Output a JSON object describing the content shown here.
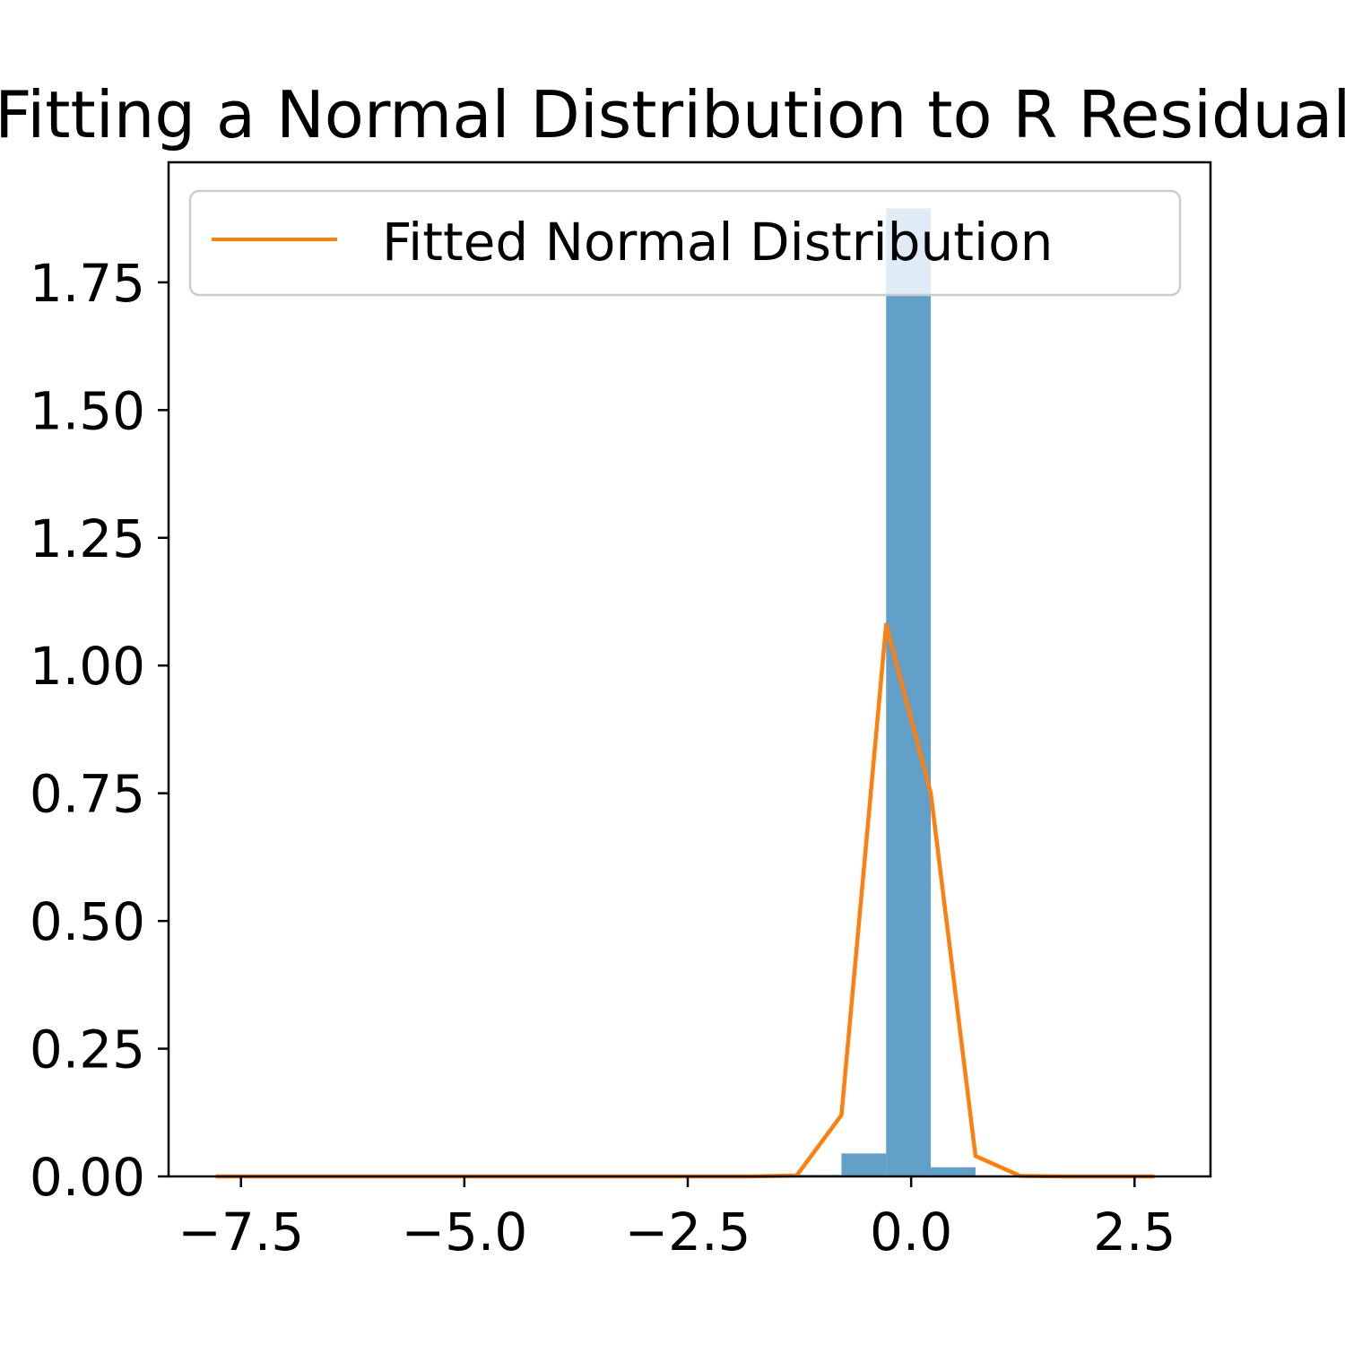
{
  "chart_data": {
    "type": "bar",
    "title": "Fitting a Normal Distribution to R Residuals",
    "xlabel": "",
    "ylabel": "",
    "xlim": [
      -8.31,
      3.35
    ],
    "ylim": [
      0,
      1.985
    ],
    "xticks": [
      -7.5,
      -5.0,
      -2.5,
      0.0,
      2.5
    ],
    "xtick_labels": [
      "−7.5",
      "−5.0",
      "−2.5",
      "0.0",
      "2.5"
    ],
    "yticks": [
      0.0,
      0.25,
      0.5,
      0.75,
      1.0,
      1.25,
      1.5,
      1.75
    ],
    "ytick_labels": [
      "0.00",
      "0.25",
      "0.50",
      "0.75",
      "1.00",
      "1.25",
      "1.50",
      "1.75"
    ],
    "grid": false,
    "legend": {
      "position": "top-right",
      "entries": [
        "Fitted Normal Distribution"
      ]
    },
    "histogram": {
      "color": "#1f77b4",
      "alpha": 0.7,
      "bin_edges": [
        -7.78,
        -7.28,
        -6.78,
        -6.28,
        -5.78,
        -5.28,
        -4.78,
        -4.28,
        -3.78,
        -3.28,
        -2.78,
        -2.28,
        -1.78,
        -1.28,
        -0.78,
        -0.28,
        0.22,
        0.72,
        1.22,
        1.72,
        2.22,
        2.72
      ],
      "density": [
        0.0005,
        0,
        0,
        0,
        0,
        0,
        0,
        0,
        0,
        0,
        0,
        0,
        0.001,
        0.003,
        0.045,
        1.895,
        0.018,
        0.002,
        0.001,
        0,
        0.0005
      ]
    },
    "series": [
      {
        "name": "Fitted Normal Distribution",
        "color": "#ff7f0e",
        "x": [
          -7.78,
          -7.28,
          -6.78,
          -6.28,
          -5.78,
          -5.28,
          -4.78,
          -4.28,
          -3.78,
          -3.28,
          -2.78,
          -2.28,
          -1.78,
          -1.28,
          -0.78,
          -0.28,
          0.22,
          0.72,
          1.22,
          1.72,
          2.22,
          2.72
        ],
        "y": [
          0,
          0,
          0,
          0,
          0,
          0,
          0,
          0,
          0,
          0,
          0,
          0,
          0,
          0.002,
          0.12,
          1.08,
          0.75,
          0.04,
          0.001,
          0,
          0,
          0
        ]
      }
    ]
  }
}
